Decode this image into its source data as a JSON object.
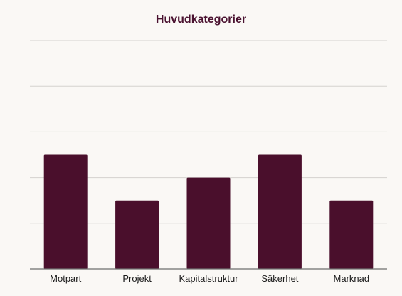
{
  "chart_data": {
    "type": "bar",
    "title": "Huvudkategorier",
    "xlabel": "",
    "ylabel": "",
    "categories": [
      "Motpart",
      "Projekt",
      "Kapitalstruktur",
      "Säkerhet",
      "Marknad"
    ],
    "values": [
      5,
      3,
      4,
      5,
      3
    ],
    "ylim": [
      0,
      10
    ],
    "grid": true,
    "legend": "none",
    "colors": {
      "bar": "#4a0f2c",
      "title": "#4a1230",
      "grid": "#d4d2ce",
      "axis": "#6e6e6e",
      "background": "#faf8f5"
    }
  }
}
